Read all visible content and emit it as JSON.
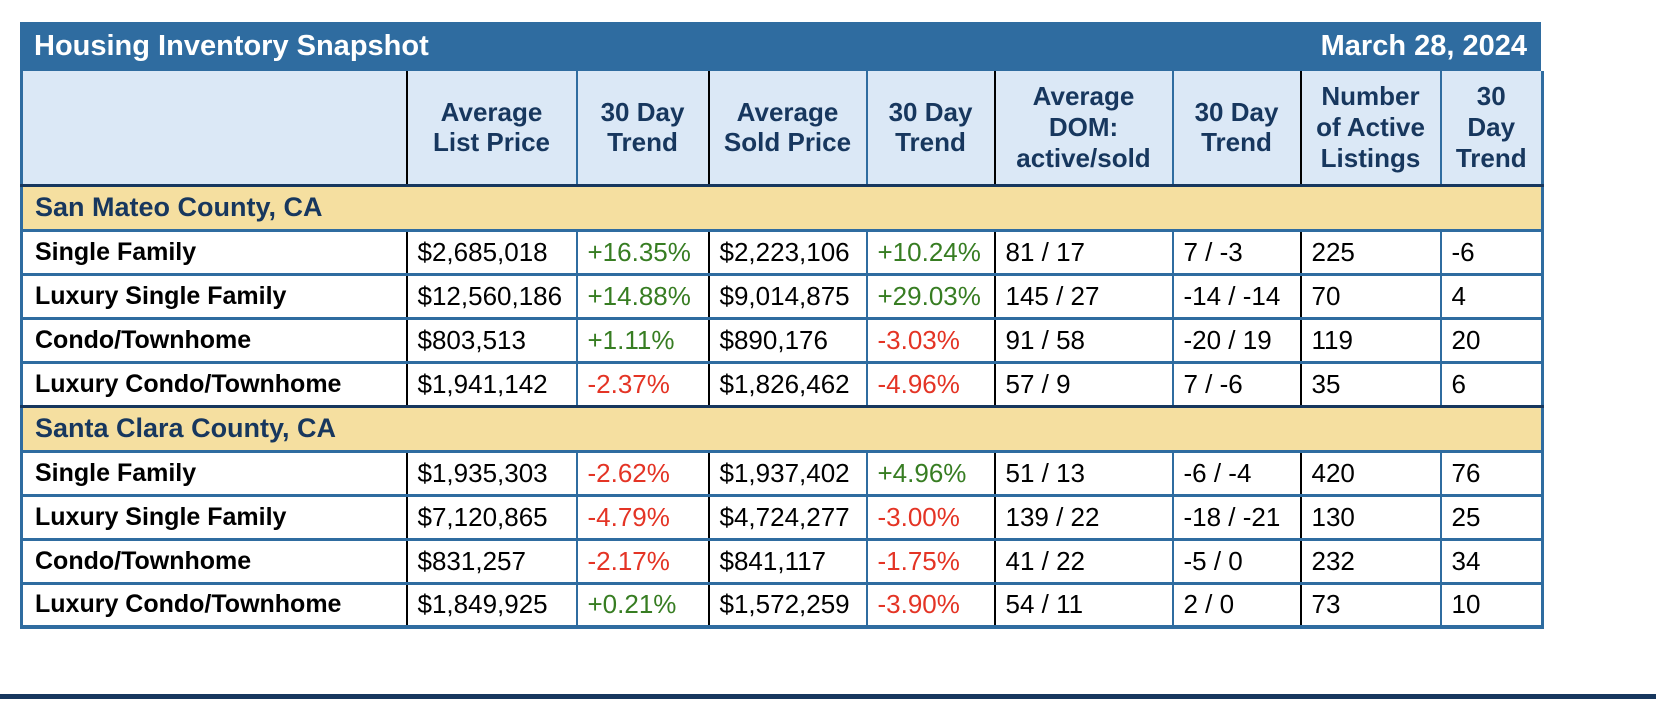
{
  "chart_data": {
    "type": "table",
    "title": "Housing Inventory Snapshot",
    "date": "March 28, 2024",
    "columns": [
      {
        "name": "category",
        "label": "",
        "lines": [
          ""
        ]
      },
      {
        "name": "avg-list-price",
        "label": "Average List Price",
        "lines": [
          "Average",
          "List Price"
        ]
      },
      {
        "name": "list-price-trend",
        "label": "30 Day Trend",
        "lines": [
          "30 Day",
          "Trend"
        ]
      },
      {
        "name": "avg-sold-price",
        "label": "Average Sold Price",
        "lines": [
          "Average",
          "Sold Price"
        ]
      },
      {
        "name": "sold-price-trend",
        "label": "30 Day Trend",
        "lines": [
          "30 Day",
          "Trend"
        ]
      },
      {
        "name": "avg-dom",
        "label": "Average DOM: active/sold",
        "lines": [
          "Average",
          "DOM:",
          "active/sold"
        ]
      },
      {
        "name": "dom-trend",
        "label": "30 Day Trend",
        "lines": [
          "30 Day",
          "Trend"
        ]
      },
      {
        "name": "active-listings",
        "label": "Number of Active Listings",
        "lines": [
          "Number",
          "of Active",
          "Listings"
        ]
      },
      {
        "name": "listings-trend",
        "label": "30 Day Trend",
        "lines": [
          "30",
          "Day",
          "Trend"
        ]
      }
    ],
    "sections": [
      {
        "name": "San Mateo County, CA",
        "rows": [
          {
            "label": "Single Family",
            "values": [
              "$2,685,018",
              "+16.35%",
              "$2,223,106",
              "+10.24%",
              "81 / 17",
              "7 / -3",
              "225",
              "-6"
            ]
          },
          {
            "label": "Luxury Single Family",
            "values": [
              "$12,560,186",
              "+14.88%",
              "$9,014,875",
              "+29.03%",
              "145 / 27",
              "-14 / -14",
              "70",
              "4"
            ]
          },
          {
            "label": "Condo/Townhome",
            "values": [
              "$803,513",
              "+1.11%",
              "$890,176",
              "-3.03%",
              "91 / 58",
              "-20 / 19",
              "119",
              "20"
            ]
          },
          {
            "label": "Luxury Condo/Townhome",
            "values": [
              "$1,941,142",
              "-2.37%",
              "$1,826,462",
              "-4.96%",
              "57 / 9",
              "7 / -6",
              "35",
              "6"
            ]
          }
        ]
      },
      {
        "name": "Santa Clara County, CA",
        "rows": [
          {
            "label": "Single Family",
            "values": [
              "$1,935,303",
              "-2.62%",
              "$1,937,402",
              "+4.96%",
              "51 / 13",
              "-6 / -4",
              "420",
              "76"
            ]
          },
          {
            "label": "Luxury Single Family",
            "values": [
              "$7,120,865",
              "-4.79%",
              "$4,724,277",
              "-3.00%",
              "139 / 22",
              "-18 / -21",
              "130",
              "25"
            ]
          },
          {
            "label": "Condo/Townhome",
            "values": [
              "$831,257",
              "-2.17%",
              "$841,117",
              "-1.75%",
              "41 / 22",
              "-5 / 0",
              "232",
              "34"
            ]
          },
          {
            "label": "Luxury Condo/Townhome",
            "values": [
              "$1,849,925",
              "+0.21%",
              "$1,572,259",
              "-3.90%",
              "54 / 11",
              "2 / 0",
              "73",
              "10"
            ]
          }
        ]
      }
    ]
  },
  "colors": {
    "titlebar-bg": "#2F6CA0",
    "titlebar-text": "#FFFFFF",
    "column-header-bg": "#DBE8F6",
    "navy-text": "#17375E",
    "section-bg": "#F5DFA0",
    "trend-up-green": "#377D22",
    "trend-down-red": "#E43425",
    "grid-blue": "#2F6CA0",
    "grid-black": "#000000"
  }
}
